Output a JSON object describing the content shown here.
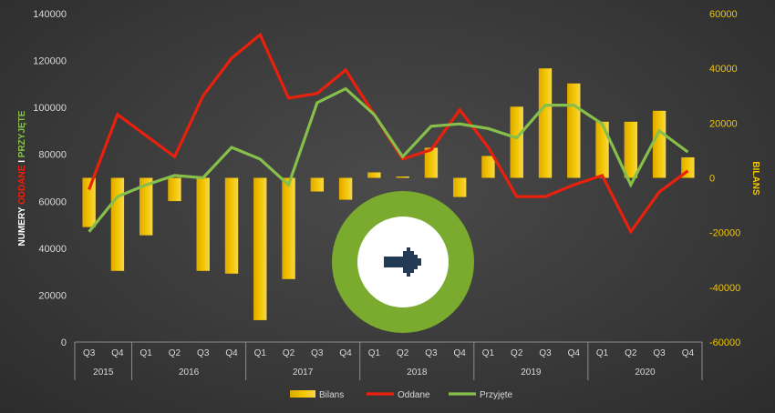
{
  "chart_data": {
    "type": "bar+line",
    "colors": {
      "bilans": "#f2c500",
      "oddane": "#e8200c",
      "przyjete": "#86c04a",
      "badge_outer": "#7aab2f",
      "badge_inner": "#ffffff",
      "badge_arrow": "#233a56"
    },
    "categories": [
      "Q3",
      "Q4",
      "Q1",
      "Q2",
      "Q3",
      "Q4",
      "Q1",
      "Q2",
      "Q3",
      "Q4",
      "Q1",
      "Q2",
      "Q3",
      "Q4",
      "Q1",
      "Q2",
      "Q3",
      "Q4",
      "Q1",
      "Q2",
      "Q3",
      "Q4"
    ],
    "years": [
      {
        "label": "2015",
        "count": 2
      },
      {
        "label": "2016",
        "count": 4
      },
      {
        "label": "2017",
        "count": 4
      },
      {
        "label": "2018",
        "count": 4
      },
      {
        "label": "2019",
        "count": 4
      },
      {
        "label": "2020",
        "count": 4
      }
    ],
    "series": [
      {
        "name": "Bilans",
        "type": "bar",
        "axis": "right",
        "values": [
          -18000,
          -34000,
          -21000,
          -8500,
          -34000,
          -35000,
          -52000,
          -37000,
          -5000,
          -8000,
          2000,
          500,
          11000,
          -7000,
          8000,
          26000,
          40000,
          34500,
          20500,
          20500,
          24500,
          7500
        ]
      },
      {
        "name": "Oddane",
        "type": "line",
        "axis": "left",
        "values": [
          65000,
          97000,
          88000,
          79000,
          105000,
          121000,
          131000,
          104000,
          106000,
          116000,
          97000,
          78000,
          82000,
          99000,
          83000,
          62000,
          62000,
          67000,
          71000,
          47000,
          64000,
          73000
        ]
      },
      {
        "name": "Przyjęte",
        "type": "line",
        "axis": "left",
        "values": [
          47000,
          62000,
          67000,
          71000,
          70000,
          83000,
          78000,
          67000,
          102000,
          108000,
          97000,
          79000,
          92000,
          93000,
          91000,
          87000,
          101000,
          101000,
          93000,
          67000,
          90000,
          81000
        ]
      }
    ],
    "y_left": {
      "min": 0,
      "max": 140000,
      "ticks": [
        "0",
        "20000",
        "40000",
        "60000",
        "80000",
        "100000",
        "120000",
        "140000"
      ],
      "label_parts": [
        {
          "text": "NUMERY ",
          "color": "#ffffff"
        },
        {
          "text": "ODDANE",
          "color": "#e8200c"
        },
        {
          "text": " I ",
          "color": "#ffffff"
        },
        {
          "text": "PRZYJĘTE",
          "color": "#86c04a"
        }
      ]
    },
    "y_right": {
      "min": -60000,
      "max": 60000,
      "ticks": [
        "-60000",
        "-40000",
        "-20000",
        "0",
        "20000",
        "40000",
        "60000"
      ],
      "label": "BILANS"
    },
    "legend": {
      "position": "bottom",
      "items": [
        "Bilans",
        "Oddane",
        "Przyjęte"
      ]
    },
    "grid": false
  }
}
